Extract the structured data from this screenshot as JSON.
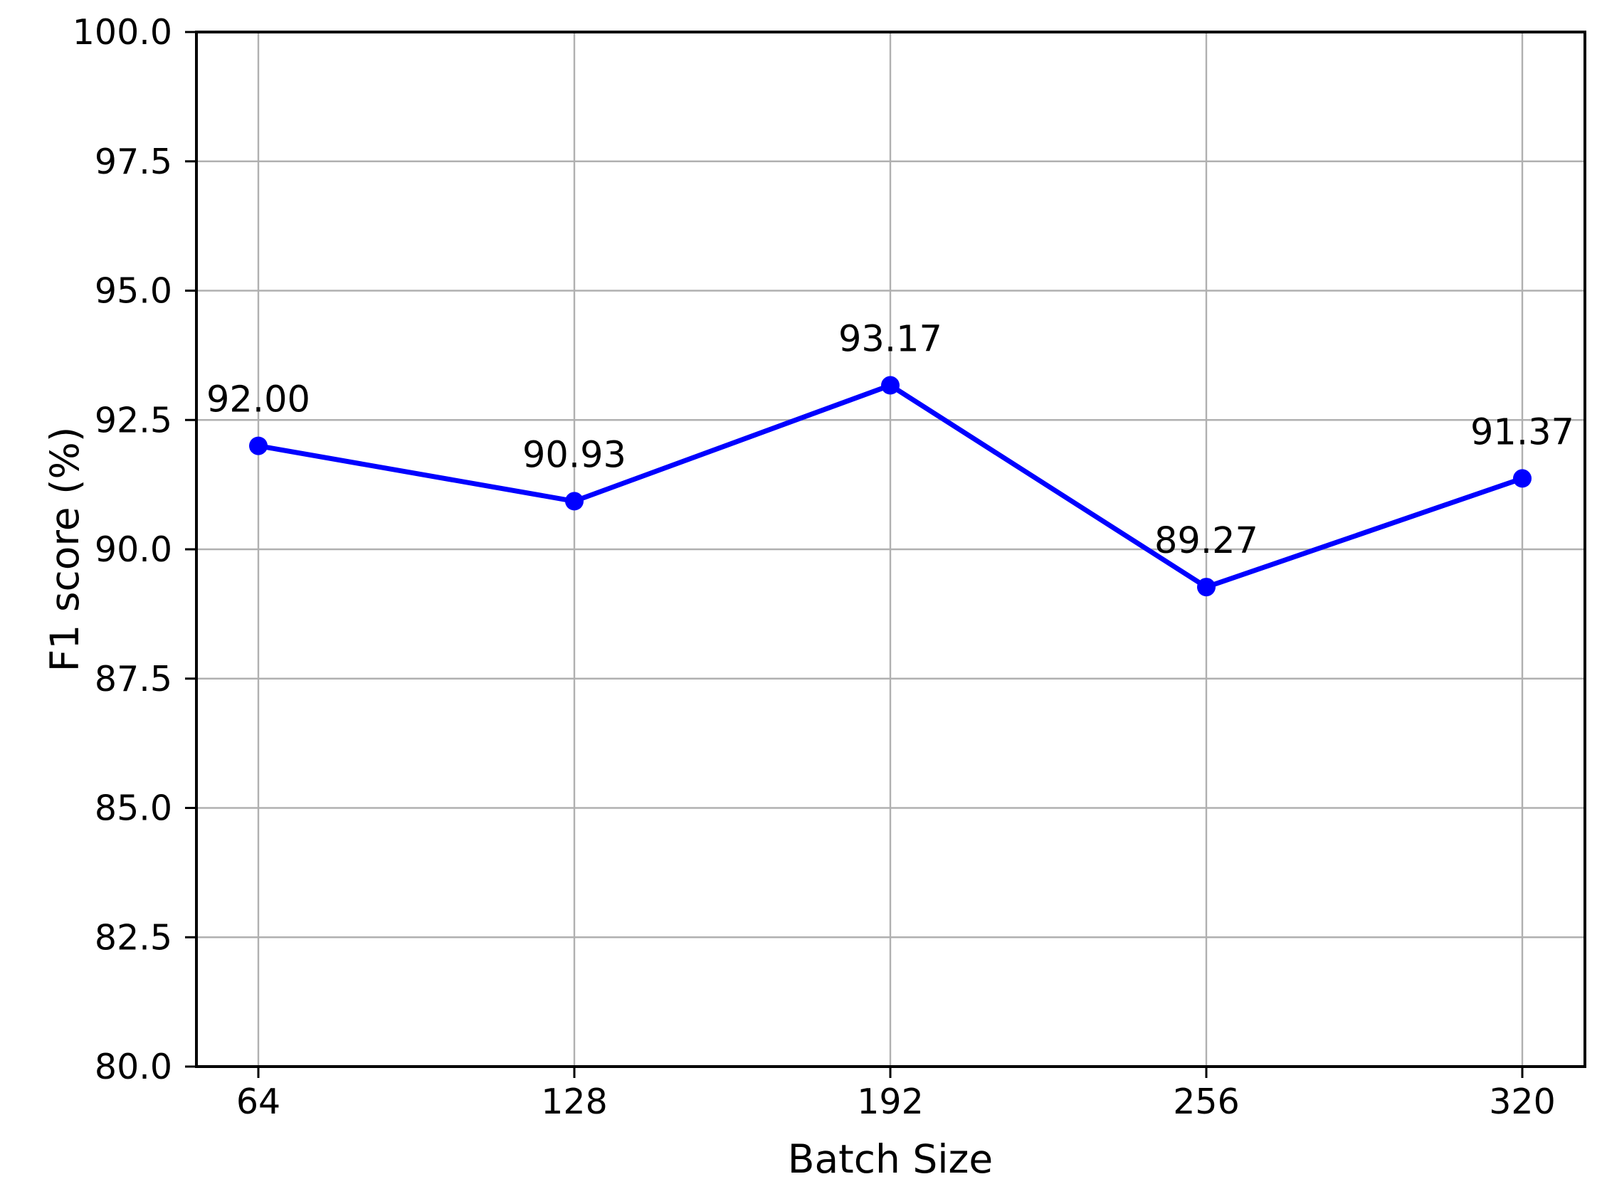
{
  "chart_data": {
    "type": "line",
    "title": "",
    "xlabel": "Batch Size",
    "ylabel": "F1 score (%)",
    "x_categories": [
      "64",
      "128",
      "192",
      "256",
      "320"
    ],
    "x": [
      64,
      128,
      192,
      256,
      320
    ],
    "series": [
      {
        "name": "F1 score",
        "values": [
          92.0,
          90.93,
          93.17,
          89.27,
          91.37
        ],
        "point_labels": [
          "92.00",
          "90.93",
          "93.17",
          "89.27",
          "91.37"
        ],
        "marker": "circle"
      }
    ],
    "ylim": [
      80.0,
      100.0
    ],
    "yticks": [
      80.0,
      82.5,
      85.0,
      87.5,
      90.0,
      92.5,
      95.0,
      97.5,
      100.0
    ],
    "ytick_labels": [
      "80.0",
      "82.5",
      "85.0",
      "87.5",
      "90.0",
      "92.5",
      "95.0",
      "97.5",
      "100.0"
    ],
    "grid": true,
    "legend_position": "none",
    "colors": {
      "line": "#0000ff",
      "marker": "#0000ff",
      "grid": "#b0b0b0",
      "spine": "#000000",
      "text": "#000000",
      "background": "#ffffff"
    }
  }
}
